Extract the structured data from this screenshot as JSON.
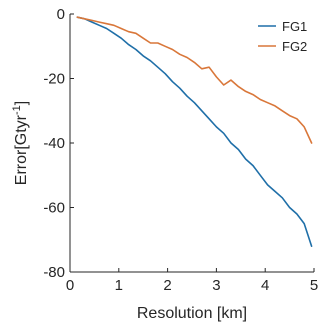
{
  "chart_data": {
    "type": "line",
    "xlabel": "Resolution [km]",
    "ylabel_main": "Error[Gtyr",
    "ylabel_sup": "-1",
    "ylabel_end": "]",
    "xlim": [
      0,
      5
    ],
    "ylim": [
      -80,
      0
    ],
    "xticks": [
      0,
      1,
      2,
      3,
      4,
      5
    ],
    "yticks": [
      0,
      -20,
      -40,
      -60,
      -80
    ],
    "xtick_labels": [
      "0",
      "1",
      "2",
      "3",
      "4",
      "5"
    ],
    "ytick_labels": [
      "0",
      "-20",
      "-40",
      "-60",
      "-80"
    ],
    "grid": false,
    "legend_position": "top-right",
    "series": [
      {
        "name": "FG1",
        "color": "#1f6fa8",
        "x": [
          0.15,
          0.3,
          0.45,
          0.6,
          0.75,
          0.9,
          1.05,
          1.2,
          1.35,
          1.5,
          1.65,
          1.8,
          1.95,
          2.1,
          2.25,
          2.4,
          2.55,
          2.7,
          2.85,
          3.0,
          3.15,
          3.3,
          3.45,
          3.6,
          3.75,
          3.9,
          4.05,
          4.2,
          4.35,
          4.5,
          4.65,
          4.8,
          4.95
        ],
        "y": [
          -1,
          -1.5,
          -2.5,
          -3.5,
          -4.5,
          -6,
          -7.5,
          -9.5,
          -11,
          -13,
          -14.5,
          -16.5,
          -18.5,
          -21,
          -23,
          -25.5,
          -27.5,
          -30,
          -32.5,
          -35,
          -37,
          -40,
          -42,
          -45,
          -47,
          -50,
          -53,
          -55,
          -57,
          -60,
          -62,
          -65,
          -72
        ]
      },
      {
        "name": "FG2",
        "color": "#d9773a",
        "x": [
          0.15,
          0.3,
          0.45,
          0.6,
          0.75,
          0.9,
          1.05,
          1.2,
          1.35,
          1.5,
          1.65,
          1.8,
          1.95,
          2.1,
          2.25,
          2.4,
          2.55,
          2.7,
          2.85,
          3.0,
          3.15,
          3.3,
          3.45,
          3.6,
          3.75,
          3.9,
          4.05,
          4.2,
          4.35,
          4.5,
          4.65,
          4.8,
          4.95
        ],
        "y": [
          -1,
          -1.5,
          -2,
          -2.5,
          -3,
          -3.5,
          -4.5,
          -5.5,
          -6,
          -7.5,
          -9,
          -9,
          -10,
          -11,
          -12.5,
          -13.5,
          -15,
          -17,
          -16.5,
          -19.5,
          -22,
          -20.5,
          -22.5,
          -24,
          -25,
          -26.5,
          -27.5,
          -28.5,
          -30,
          -31.5,
          -32.5,
          -35,
          -40
        ]
      }
    ]
  }
}
